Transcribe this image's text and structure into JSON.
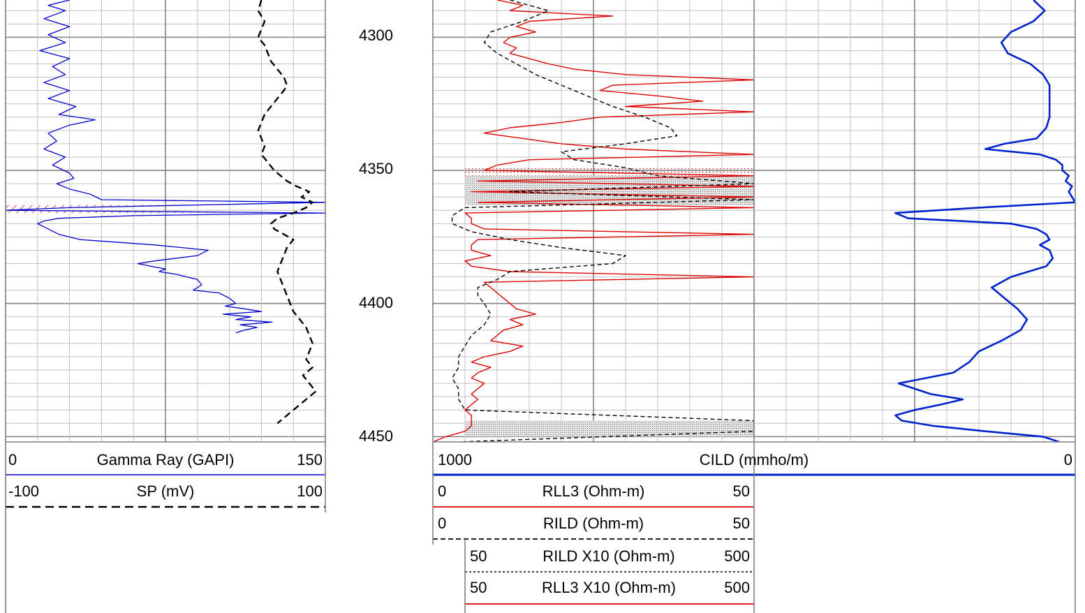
{
  "colors": {
    "grid_minor": "#c0c0c0",
    "grid_major": "#808080",
    "gamma_ray": "#0000cc",
    "sp": "#000000",
    "rll3": "#dd0000",
    "rild": "#000000",
    "cild": "#0022cc",
    "shade_black": "#888888",
    "shade_red": "#dd0000"
  },
  "depth_track": {
    "labels": [
      "4300",
      "4350",
      "4400",
      "4450"
    ]
  },
  "headers": {
    "gamma_ray": {
      "min": "0",
      "name": "Gamma Ray (GAPI)",
      "max": "150"
    },
    "sp": {
      "min": "-100",
      "name": "SP (mV)",
      "max": "100"
    },
    "cild": {
      "min": "1000",
      "name": "CILD (mmho/m)",
      "max": "0"
    },
    "rll3": {
      "min": "0",
      "name": "RLL3 (Ohm-m)",
      "max": "50"
    },
    "rild": {
      "min": "0",
      "name": "RILD (Ohm-m)",
      "max": "50"
    },
    "rild_x10": {
      "min": "50",
      "name": "RILD X10 (Ohm-m)",
      "max": "500"
    },
    "rll3_x10": {
      "min": "50",
      "name": "RLL3 X10 (Ohm-m)",
      "max": "500"
    }
  },
  "chart_data": {
    "type": "line",
    "depth_unit_range": [
      4286,
      4452
    ],
    "tracks": [
      {
        "name": "track1",
        "series": [
          {
            "name": "Gamma Ray (GAPI)",
            "scale": [
              0,
              150
            ],
            "depth": [
              4286,
              4288,
              4290,
              4293,
              4296,
              4299,
              4302,
              4305,
              4308,
              4311,
              4314,
              4317,
              4320,
              4323,
              4326,
              4329,
              4331,
              4333,
              4336,
              4339,
              4342,
              4345,
              4348,
              4351,
              4353,
              4355,
              4357,
              4359,
              4361,
              4362,
              4363,
              4364,
              4365,
              4366,
              4367,
              4368,
              4369,
              4370,
              4372,
              4374,
              4376,
              4378,
              4380,
              4382,
              4384,
              4385,
              4386,
              4387,
              4388,
              4389,
              4390,
              4391,
              4393,
              4395,
              4396,
              4398,
              4400,
              4401,
              4402,
              4403,
              4404,
              4405,
              4406,
              4407,
              4408,
              4409,
              4410,
              4411
            ],
            "values": [
              30,
              20,
              28,
              18,
              30,
              20,
              28,
              16,
              30,
              22,
              28,
              18,
              30,
              20,
              33,
              25,
              42,
              30,
              20,
              24,
              18,
              28,
              22,
              30,
              32,
              24,
              30,
              40,
              45,
              150,
              90,
              30,
              0,
              150,
              60,
              25,
              18,
              15,
              20,
              25,
              35,
              70,
              95,
              90,
              70,
              62,
              68,
              75,
              72,
              80,
              85,
              90,
              92,
              88,
              100,
              105,
              108,
              103,
              112,
              120,
              102,
              115,
              108,
              125,
              110,
              118,
              112,
              108
            ]
          },
          {
            "name": "SP (mV)",
            "scale": [
              -100,
              100
            ],
            "depth": [
              4286,
              4290,
              4294,
              4297,
              4300,
              4303,
              4306,
              4309,
              4312,
              4315,
              4318,
              4320,
              4323,
              4326,
              4329,
              4332,
              4335,
              4338,
              4341,
              4344,
              4347,
              4350,
              4352,
              4354,
              4356,
              4358,
              4360,
              4362,
              4364,
              4366,
              4368,
              4370,
              4372,
              4374,
              4376,
              4379,
              4382,
              4385,
              4388,
              4391,
              4394,
              4397,
              4400,
              4403,
              4406,
              4409,
              4412,
              4415,
              4418,
              4421,
              4424,
              4427,
              4430,
              4433,
              4436,
              4439,
              4442,
              4445
            ],
            "values": [
              60,
              58,
              62,
              60,
              58,
              62,
              64,
              66,
              70,
              74,
              76,
              74,
              70,
              66,
              62,
              60,
              58,
              60,
              62,
              60,
              64,
              68,
              72,
              76,
              82,
              90,
              85,
              92,
              88,
              80,
              70,
              66,
              68,
              74,
              80,
              76,
              74,
              72,
              70,
              72,
              74,
              76,
              78,
              80,
              84,
              88,
              90,
              92,
              90,
              88,
              92,
              86,
              90,
              94,
              88,
              82,
              76,
              70
            ]
          }
        ],
        "annotations": [
          {
            "type": "shade",
            "depth_top": 4363,
            "depth_bottom": 4366,
            "curve": "Gamma Ray (GAPI)",
            "fill": "red-hatch"
          }
        ]
      },
      {
        "name": "track2",
        "series": [
          {
            "name": "RLL3 (Ohm-m)",
            "scale": [
              0,
              50
            ],
            "depth": [
              4286,
              4288,
              4290,
              4292,
              4294,
              4296,
              4298,
              4300,
              4302,
              4304,
              4306,
              4308,
              4310,
              4312,
              4314,
              4316,
              4318,
              4320,
              4322,
              4324,
              4326,
              4328,
              4330,
              4332,
              4334,
              4336,
              4338,
              4340,
              4342,
              4344,
              4346,
              4348,
              4350,
              4352,
              4354,
              4356,
              4358,
              4360,
              4362,
              4364,
              4366,
              4368,
              4370,
              4372,
              4374,
              4376,
              4378,
              4380,
              4382,
              4384,
              4386,
              4388,
              4390,
              4392,
              4394,
              4396,
              4398,
              4400,
              4402,
              4404,
              4406,
              4408,
              4410,
              4412,
              4414,
              4416,
              4418,
              4420,
              4422,
              4424,
              4426,
              4428,
              4430,
              4432,
              4434,
              4436,
              4438,
              4440,
              4442,
              4444,
              4446,
              4448,
              4450,
              4452
            ],
            "values": [
              10,
              14,
              12,
              28,
              15,
              13,
              16,
              12,
              11,
              13,
              12,
              15,
              18,
              22,
              30,
              50,
              28,
              26,
              35,
              42,
              30,
              50,
              26,
              20,
              12,
              8,
              14,
              20,
              30,
              50,
              15,
              10,
              8,
              50,
              7,
              50,
              6,
              50,
              7,
              50,
              5,
              6,
              6,
              8,
              50,
              7,
              6,
              6,
              9,
              5,
              6,
              12,
              50,
              8,
              9,
              10,
              11,
              12,
              13,
              16,
              12,
              14,
              11,
              10,
              9,
              14,
              12,
              8,
              6,
              9,
              7,
              6,
              8,
              7,
              6,
              7,
              6,
              5,
              6,
              6,
              6,
              5,
              2,
              0
            ]
          },
          {
            "name": "RILD (Ohm-m)",
            "scale": [
              0,
              50
            ],
            "depth": [
              4286,
              4290,
              4294,
              4298,
              4302,
              4306,
              4310,
              4314,
              4318,
              4322,
              4326,
              4330,
              4334,
              4337,
              4340,
              4343,
              4346,
              4349,
              4352,
              4355,
              4358,
              4361,
              4364,
              4367,
              4370,
              4373,
              4376,
              4379,
              4382,
              4385,
              4388,
              4391,
              4394,
              4397,
              4400,
              4404,
              4408,
              4412,
              4416,
              4420,
              4424,
              4428,
              4432,
              4436,
              4440,
              4444,
              4448,
              4452
            ],
            "values": [
              12,
              18,
              14,
              9,
              8,
              10,
              13,
              16,
              20,
              24,
              28,
              33,
              37,
              38,
              30,
              20,
              22,
              30,
              35,
              50,
              12,
              50,
              5,
              3,
              3,
              6,
              12,
              20,
              30,
              28,
              12,
              10,
              7,
              7,
              8,
              9,
              8,
              6,
              5,
              4,
              4,
              3,
              4,
              4,
              5,
              50,
              50,
              4
            ]
          }
        ],
        "annotations": [
          {
            "type": "shade",
            "depth_top": 4349,
            "depth_bottom": 4359,
            "fill": "red-dots"
          },
          {
            "type": "shade",
            "depth_top": 4352,
            "depth_bottom": 4363,
            "fill": "gray-dots"
          },
          {
            "type": "shade",
            "depth_top": 4444,
            "depth_bottom": 4450,
            "fill": "gray-dots"
          }
        ]
      },
      {
        "name": "track3",
        "series": [
          {
            "name": "CILD (mmho/m)",
            "scale": [
              1000,
              0
            ],
            "depth": [
              4286,
              4290,
              4294,
              4298,
              4302,
              4306,
              4310,
              4314,
              4318,
              4322,
              4326,
              4330,
              4334,
              4338,
              4340,
              4342,
              4344,
              4346,
              4348,
              4350,
              4352,
              4354,
              4356,
              4358,
              4360,
              4362,
              4364,
              4366,
              4368,
              4370,
              4372,
              4374,
              4376,
              4378,
              4380,
              4383,
              4386,
              4390,
              4394,
              4398,
              4402,
              4406,
              4410,
              4414,
              4418,
              4422,
              4426,
              4430,
              4434,
              4436,
              4438,
              4440,
              4442,
              4444,
              4446,
              4448,
              4450,
              4452
            ],
            "values": [
              130,
              95,
              130,
              200,
              230,
              210,
              140,
              100,
              80,
              80,
              80,
              80,
              90,
              120,
              220,
              280,
              110,
              60,
              40,
              40,
              20,
              30,
              10,
              20,
              10,
              0,
              300,
              560,
              520,
              200,
              120,
              90,
              80,
              110,
              80,
              70,
              90,
              200,
              260,
              220,
              180,
              150,
              170,
              230,
              300,
              330,
              380,
              550,
              450,
              350,
              420,
              500,
              560,
              540,
              440,
              280,
              100,
              50
            ]
          }
        ]
      }
    ]
  }
}
